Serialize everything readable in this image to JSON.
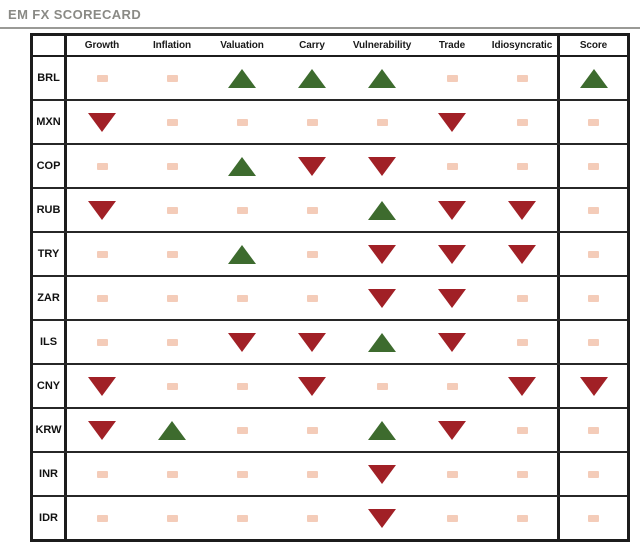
{
  "title": "EM FX SCORECARD",
  "chart_data": {
    "type": "table",
    "title": "EM FX SCORECARD",
    "columns": [
      "Growth",
      "Inflation",
      "Valuation",
      "Carry",
      "Vulnerability",
      "Trade",
      "Idiosyncratic",
      "Score"
    ],
    "rows": [
      "BRL",
      "MXN",
      "COP",
      "RUB",
      "TRY",
      "ZAR",
      "ILS",
      "CNY",
      "KRW",
      "INR",
      "IDR"
    ],
    "values": [
      [
        "neutral",
        "neutral",
        "up",
        "up",
        "up",
        "neutral",
        "neutral",
        "up"
      ],
      [
        "down",
        "neutral",
        "neutral",
        "neutral",
        "neutral",
        "down",
        "neutral",
        "neutral"
      ],
      [
        "neutral",
        "neutral",
        "up",
        "down",
        "down",
        "neutral",
        "neutral",
        "neutral"
      ],
      [
        "down",
        "neutral",
        "neutral",
        "neutral",
        "up",
        "down",
        "down",
        "neutral"
      ],
      [
        "neutral",
        "neutral",
        "up",
        "neutral",
        "down",
        "down",
        "down",
        "neutral"
      ],
      [
        "neutral",
        "neutral",
        "neutral",
        "neutral",
        "down",
        "down",
        "neutral",
        "neutral"
      ],
      [
        "neutral",
        "neutral",
        "down",
        "down",
        "up",
        "down",
        "neutral",
        "neutral"
      ],
      [
        "down",
        "neutral",
        "neutral",
        "down",
        "neutral",
        "neutral",
        "down",
        "down"
      ],
      [
        "down",
        "up",
        "neutral",
        "neutral",
        "up",
        "down",
        "neutral",
        "neutral"
      ],
      [
        "neutral",
        "neutral",
        "neutral",
        "neutral",
        "down",
        "neutral",
        "neutral",
        "neutral"
      ],
      [
        "neutral",
        "neutral",
        "neutral",
        "neutral",
        "down",
        "neutral",
        "neutral",
        "neutral"
      ]
    ],
    "symbol_meanings": {
      "up": "green up triangle (positive)",
      "down": "red down triangle (negative)",
      "neutral": "small beige square (neutral)"
    },
    "colors": {
      "up": "#3d6b2e",
      "down": "#a12026",
      "neutral": "#f4ccb9",
      "title_text": "#8a8a85",
      "border": "#1c1c1c"
    }
  }
}
